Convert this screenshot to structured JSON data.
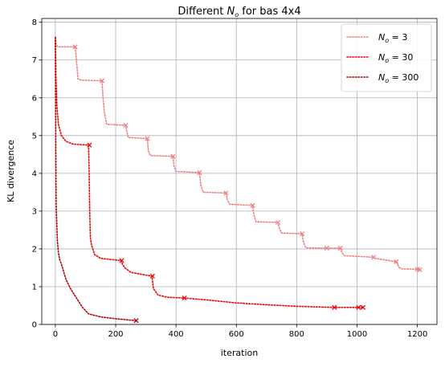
{
  "chart_data": {
    "type": "line",
    "title": {
      "prefix": "Different ",
      "var": "N",
      "sub": "o",
      "suffix": " for bas 4x4"
    },
    "xlabel": "iteration",
    "ylabel": "KL divergence",
    "xlim": [
      -45,
      1265
    ],
    "ylim": [
      0,
      8.1
    ],
    "xticks": [
      0,
      200,
      400,
      600,
      800,
      1000,
      1200
    ],
    "yticks": [
      0,
      1,
      2,
      3,
      4,
      5,
      6,
      7,
      8
    ],
    "grid": true,
    "legend_position": "top-right",
    "series": [
      {
        "label": {
          "var": "N",
          "sub": "o",
          "rest": " = 3"
        },
        "color": "#f08080",
        "linestyle": "dotted",
        "line": [
          [
            0,
            7.6
          ],
          [
            3,
            7.4
          ],
          [
            8,
            7.35
          ],
          [
            66,
            7.35
          ],
          [
            70,
            7.0
          ],
          [
            75,
            6.5
          ],
          [
            85,
            6.47
          ],
          [
            155,
            6.45
          ],
          [
            158,
            6.0
          ],
          [
            163,
            5.6
          ],
          [
            170,
            5.3
          ],
          [
            233,
            5.27
          ],
          [
            237,
            5.1
          ],
          [
            242,
            4.95
          ],
          [
            305,
            4.92
          ],
          [
            308,
            4.6
          ],
          [
            315,
            4.47
          ],
          [
            390,
            4.45
          ],
          [
            393,
            4.2
          ],
          [
            400,
            4.05
          ],
          [
            478,
            4.02
          ],
          [
            482,
            3.7
          ],
          [
            490,
            3.5
          ],
          [
            566,
            3.48
          ],
          [
            570,
            3.3
          ],
          [
            578,
            3.18
          ],
          [
            654,
            3.15
          ],
          [
            658,
            2.9
          ],
          [
            665,
            2.72
          ],
          [
            738,
            2.7
          ],
          [
            742,
            2.55
          ],
          [
            750,
            2.42
          ],
          [
            818,
            2.4
          ],
          [
            822,
            2.2
          ],
          [
            830,
            2.03
          ],
          [
            900,
            2.02
          ],
          [
            945,
            2.02
          ],
          [
            950,
            1.9
          ],
          [
            958,
            1.82
          ],
          [
            1055,
            1.78
          ],
          [
            1060,
            1.75
          ],
          [
            1130,
            1.66
          ],
          [
            1140,
            1.5
          ],
          [
            1150,
            1.47
          ],
          [
            1200,
            1.46
          ],
          [
            1210,
            1.45
          ]
        ],
        "markers": [
          [
            66,
            7.35
          ],
          [
            155,
            6.45
          ],
          [
            233,
            5.27
          ],
          [
            305,
            4.92
          ],
          [
            390,
            4.45
          ],
          [
            478,
            4.02
          ],
          [
            566,
            3.48
          ],
          [
            654,
            3.15
          ],
          [
            738,
            2.7
          ],
          [
            818,
            2.4
          ],
          [
            900,
            2.02
          ],
          [
            945,
            2.02
          ],
          [
            1055,
            1.78
          ],
          [
            1130,
            1.66
          ],
          [
            1200,
            1.46
          ],
          [
            1208,
            1.45
          ]
        ]
      },
      {
        "label": {
          "var": "N",
          "sub": "o",
          "rest": " = 30"
        },
        "color": "#ee0000",
        "linestyle": "dotted",
        "line": [
          [
            0,
            7.6
          ],
          [
            2,
            6.5
          ],
          [
            5,
            5.8
          ],
          [
            10,
            5.3
          ],
          [
            20,
            5.0
          ],
          [
            35,
            4.85
          ],
          [
            60,
            4.77
          ],
          [
            110,
            4.75
          ],
          [
            112,
            4.0
          ],
          [
            114,
            3.0
          ],
          [
            116,
            2.3
          ],
          [
            120,
            2.1
          ],
          [
            130,
            1.85
          ],
          [
            150,
            1.75
          ],
          [
            218,
            1.69
          ],
          [
            222,
            1.6
          ],
          [
            230,
            1.5
          ],
          [
            250,
            1.38
          ],
          [
            290,
            1.32
          ],
          [
            320,
            1.28
          ],
          [
            325,
            0.95
          ],
          [
            340,
            0.78
          ],
          [
            370,
            0.72
          ],
          [
            425,
            0.7
          ],
          [
            500,
            0.65
          ],
          [
            600,
            0.57
          ],
          [
            700,
            0.52
          ],
          [
            800,
            0.48
          ],
          [
            925,
            0.45
          ],
          [
            1000,
            0.45
          ],
          [
            1020,
            0.45
          ]
        ],
        "markers": [
          [
            113,
            4.75
          ],
          [
            220,
            1.69
          ],
          [
            322,
            1.28
          ],
          [
            428,
            0.7
          ],
          [
            925,
            0.45
          ],
          [
            1005,
            0.45
          ],
          [
            1020,
            0.45
          ]
        ]
      },
      {
        "label": {
          "var": "N",
          "sub": "o",
          "rest": " = 300"
        },
        "color": "#b30000",
        "linestyle": "dotted",
        "line": [
          [
            0,
            7.6
          ],
          [
            1,
            5.5
          ],
          [
            2,
            3.8
          ],
          [
            3,
            3.1
          ],
          [
            5,
            2.6
          ],
          [
            7,
            2.2
          ],
          [
            10,
            1.9
          ],
          [
            15,
            1.7
          ],
          [
            20,
            1.6
          ],
          [
            35,
            1.2
          ],
          [
            50,
            0.95
          ],
          [
            70,
            0.7
          ],
          [
            90,
            0.45
          ],
          [
            110,
            0.28
          ],
          [
            150,
            0.2
          ],
          [
            200,
            0.15
          ],
          [
            268,
            0.1
          ]
        ],
        "markers": [
          [
            268,
            0.1
          ]
        ]
      }
    ]
  }
}
